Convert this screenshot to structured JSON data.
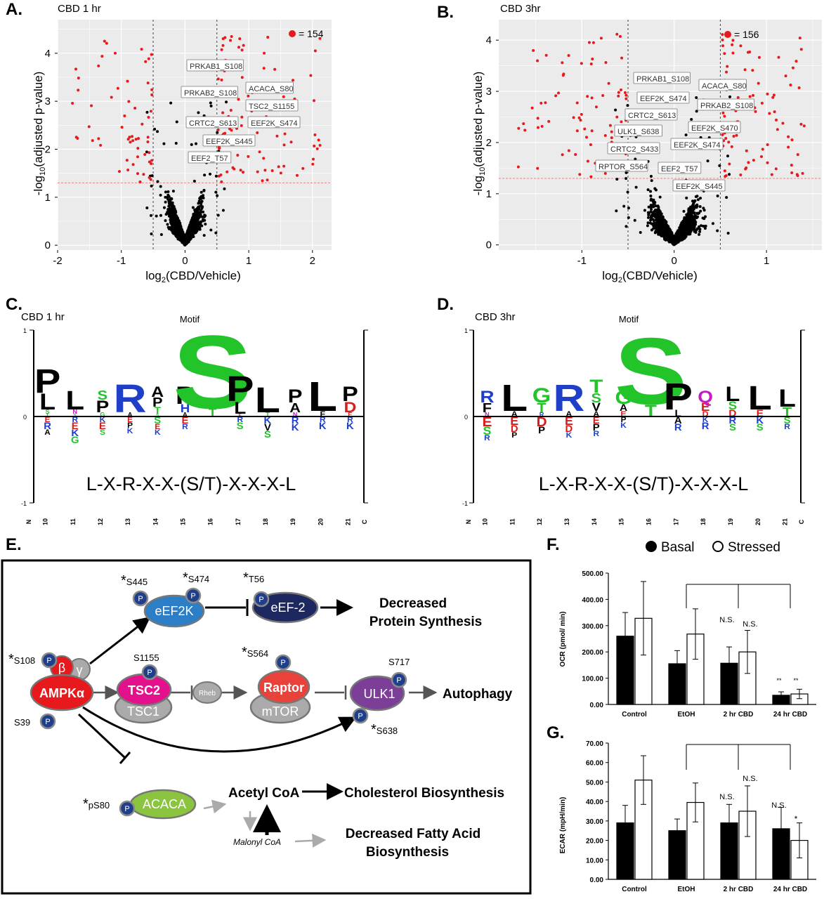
{
  "panels": {
    "A": {
      "letter": "A.",
      "title": "CBD 1 hr",
      "count": "= 154",
      "ylabel_pre": "-log",
      "ylabel_sub": "10",
      "ylabel_post": "(adjusted p-value)",
      "xlabel_pre": "log",
      "xlabel_sub": "2",
      "xlabel_post": "(CBD/Vehicle)",
      "xticks": [
        "-2",
        "-1",
        "0",
        "1",
        "2"
      ],
      "yticks": [
        "0",
        "1",
        "2",
        "3",
        "4"
      ],
      "labels": [
        "PRKAB1_S108",
        "PRKAB2_S108",
        "ACACA_S80",
        "TSC2_S1155",
        "CRTC2_S613",
        "EEF2K_S474",
        "EEF2K_S445",
        "EEF2_T57"
      ]
    },
    "B": {
      "letter": "B.",
      "title": "CBD 3hr",
      "count": "= 156",
      "ylabel_pre": "-log",
      "ylabel_sub": "10",
      "ylabel_post": "(adjusted p-value)",
      "xlabel_pre": "log",
      "xlabel_sub": "2",
      "xlabel_post": "(CBD/Vehicle)",
      "xticks": [
        "-1",
        "0",
        "1"
      ],
      "yticks": [
        "0",
        "1",
        "2",
        "3",
        "4"
      ],
      "labels": [
        "PRKAB1_S108",
        "ACACA_S80",
        "EEF2K_S474",
        "PRKAB2_S108",
        "CRTC2_S613",
        "EEF2K_S470",
        "ULK1_S638",
        "EEF2K_S474",
        "CRTC2_S433",
        "RPTOR_S564",
        "EEF2_T57",
        "EEF2K_S445"
      ]
    },
    "C": {
      "letter": "C.",
      "title": "CBD 1 hr",
      "motif_title": "Motif",
      "motif": "L-X-R-X-X-(S/T)-X-X-X-L",
      "ytop": "1",
      "ymid": "0",
      "ybot": "-1",
      "n_label": "N",
      "c_label": "C",
      "positions": [
        "10",
        "11",
        "12",
        "13",
        "14",
        "15",
        "16",
        "17",
        "18",
        "19",
        "20",
        "21"
      ]
    },
    "D": {
      "letter": "D.",
      "title": "CBD 3hr",
      "motif_title": "Motif",
      "motif": "L-X-R-X-X-(S/T)-X-X-X-L",
      "ytop": "1",
      "ymid": "0",
      "ybot": "-1",
      "n_label": "N",
      "c_label": "C",
      "positions": [
        "10",
        "11",
        "12",
        "13",
        "14",
        "15",
        "16",
        "17",
        "18",
        "19",
        "20",
        "21"
      ]
    },
    "E": {
      "letter": "E.",
      "nodes": {
        "eEF2K": "eEF2K",
        "eEF2": "eEF-2",
        "TSC2": "TSC2",
        "TSC1": "TSC1",
        "Rheb": "Rheb",
        "Raptor": "Raptor",
        "mTOR": "mTOR",
        "ULK1": "ULK1",
        "AMPK": "AMPKα",
        "beta": "β",
        "gamma": "γ",
        "ACACA": "ACACA",
        "p": "P"
      },
      "sites": {
        "s445": "S445",
        "s474": "S474",
        "t56": "T56",
        "s108": "S108",
        "s1155": "S1155",
        "s564": "S564",
        "s717": "S717",
        "s39": "S39",
        "s638": "S638",
        "ps80": "pS80",
        "star": "*"
      },
      "outputs": {
        "protein1": "Decreased",
        "protein2": "Protein Synthesis",
        "autophagy": "Autophagy",
        "acetyl": "Acetyl CoA",
        "chol": "Cholesterol Biosynthesis",
        "malonyl": "Malonyl CoA",
        "fatty1": "Decreased Fatty Acid",
        "fatty2": "Biosynthesis"
      }
    },
    "F": {
      "letter": "F.",
      "legend_basal": "Basal",
      "legend_stressed": "Stressed",
      "ylabel": "OCR (pmol/ min)",
      "yticks": [
        "0.00",
        "100.00",
        "200.00",
        "300.00",
        "400.00",
        "500.00"
      ],
      "categories": [
        "Control",
        "EtOH",
        "2 hr CBD",
        "24 hr CBD"
      ],
      "annotations": {
        "ns1": "N.S.",
        "ns2": "N.S.",
        "s1": "**",
        "s2": "**"
      }
    },
    "G": {
      "letter": "G.",
      "ylabel": "ECAR (mpH/min)",
      "yticks": [
        "0.00",
        "10.00",
        "20.00",
        "30.00",
        "40.00",
        "50.00",
        "60.00",
        "70.00"
      ],
      "categories": [
        "Control",
        "EtOH",
        "2 hr CBD",
        "24 hr CBD"
      ],
      "annotations": {
        "ns1": "N.S.",
        "ns2": "N.S.",
        "ns3": "N.S.",
        "s1": "*"
      }
    }
  },
  "chart_data": [
    {
      "type": "scatter",
      "title": "CBD 1 hr",
      "xlabel": "log2(CBD/Vehicle)",
      "ylabel": "-log10(adjusted p-value)",
      "xlim": [
        -2.0,
        2.3
      ],
      "ylim": [
        -0.1,
        4.7
      ],
      "thresholds": {
        "x": [
          -0.5,
          0.5
        ],
        "y": 1.3
      },
      "significant_count": 154,
      "labeled_points": [
        "PRKAB1_S108",
        "PRKAB2_S108",
        "ACACA_S80",
        "TSC2_S1155",
        "CRTC2_S613",
        "EEF2K_S474",
        "EEF2K_S445",
        "EEF2_T57"
      ]
    },
    {
      "type": "scatter",
      "title": "CBD 3hr",
      "xlabel": "log2(CBD/Vehicle)",
      "ylabel": "-log10(adjusted p-value)",
      "xlim": [
        -1.9,
        1.6
      ],
      "ylim": [
        -0.1,
        4.4
      ],
      "thresholds": {
        "x": [
          -0.5,
          0.5
        ],
        "y": 1.3
      },
      "significant_count": 156,
      "labeled_points": [
        "PRKAB1_S108",
        "ACACA_S80",
        "EEF2K_S474",
        "PRKAB2_S108",
        "CRTC2_S613",
        "EEF2K_S470",
        "ULK1_S638",
        "EEF2K_S474",
        "CRTC2_S433",
        "RPTOR_S564",
        "EEF2_T57",
        "EEF2K_S445"
      ]
    },
    {
      "type": "bar",
      "title": "",
      "ylabel": "OCR (pmol/ min)",
      "categories": [
        "Control",
        "EtOH",
        "2 hr CBD",
        "24 hr CBD"
      ],
      "ylim": [
        0,
        500
      ],
      "series": [
        {
          "name": "Basal",
          "values": [
            260,
            155,
            157,
            35
          ],
          "errors": [
            90,
            50,
            62,
            13
          ]
        },
        {
          "name": "Stressed",
          "values": [
            328,
            268,
            200,
            40
          ],
          "errors": [
            140,
            96,
            82,
            18
          ]
        }
      ]
    },
    {
      "type": "bar",
      "title": "",
      "ylabel": "ECAR (mpH/min)",
      "categories": [
        "Control",
        "EtOH",
        "2 hr CBD",
        "24 hr CBD"
      ],
      "ylim": [
        0,
        70
      ],
      "series": [
        {
          "name": "Basal",
          "values": [
            29,
            25,
            29,
            26
          ],
          "errors": [
            9,
            6,
            9.5,
            11
          ]
        },
        {
          "name": "Stressed",
          "values": [
            51,
            39.5,
            35,
            20
          ],
          "errors": [
            12.5,
            10,
            13,
            9
          ]
        }
      ]
    }
  ]
}
